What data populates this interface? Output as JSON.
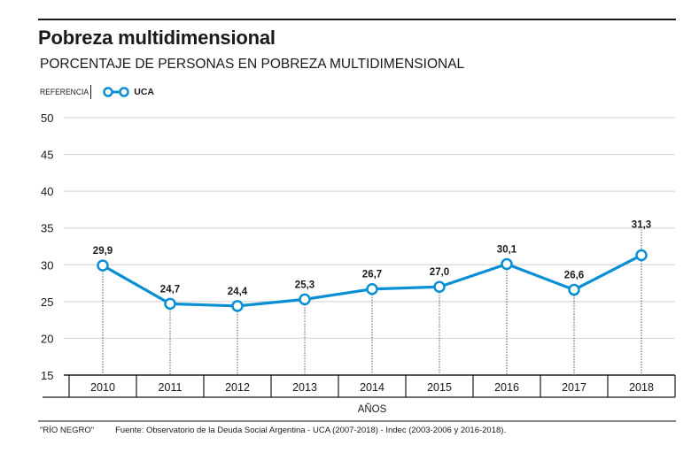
{
  "header": {
    "title": "Pobreza multidimensional",
    "subtitle": "PORCENTAJE DE PERSONAS EN POBREZA MULTIDIMENSIONAL"
  },
  "legend": {
    "label": "REFERENCIA",
    "items": [
      {
        "name": "UCA",
        "color": "#0a8fd4"
      }
    ]
  },
  "footer": {
    "brand": "\"RÍO NEGRO\"",
    "source": "Fuente: Observatorio de la Deuda Social Argentina - UCA (2007-2018) - Indec (2003-2006 y 2016-2018)."
  },
  "chart_data": {
    "type": "line",
    "title": "Pobreza multidimensional",
    "subtitle": "PORCENTAJE DE PERSONAS EN POBREZA MULTIDIMENSIONAL",
    "xlabel": "AÑOS",
    "ylabel": "",
    "categories": [
      "2010",
      "2011",
      "2012",
      "2013",
      "2014",
      "2015",
      "2016",
      "2017",
      "2018"
    ],
    "series": [
      {
        "name": "UCA",
        "color": "#0a8fd4",
        "values": [
          29.9,
          24.7,
          24.4,
          25.3,
          26.7,
          27.0,
          30.1,
          26.6,
          31.3
        ],
        "labels": [
          "29,9",
          "24,7",
          "24,4",
          "25,3",
          "26,7",
          "27,0",
          "30,1",
          "26,6",
          "31,3"
        ]
      }
    ],
    "ylim": [
      15,
      50
    ],
    "yticks": [
      15,
      20,
      25,
      30,
      35,
      40,
      45,
      50
    ],
    "ytick_labels": [
      "15",
      "20",
      "25",
      "30",
      "35",
      "40",
      "45",
      "50"
    ],
    "grid": true,
    "legend_position": "top-left"
  }
}
